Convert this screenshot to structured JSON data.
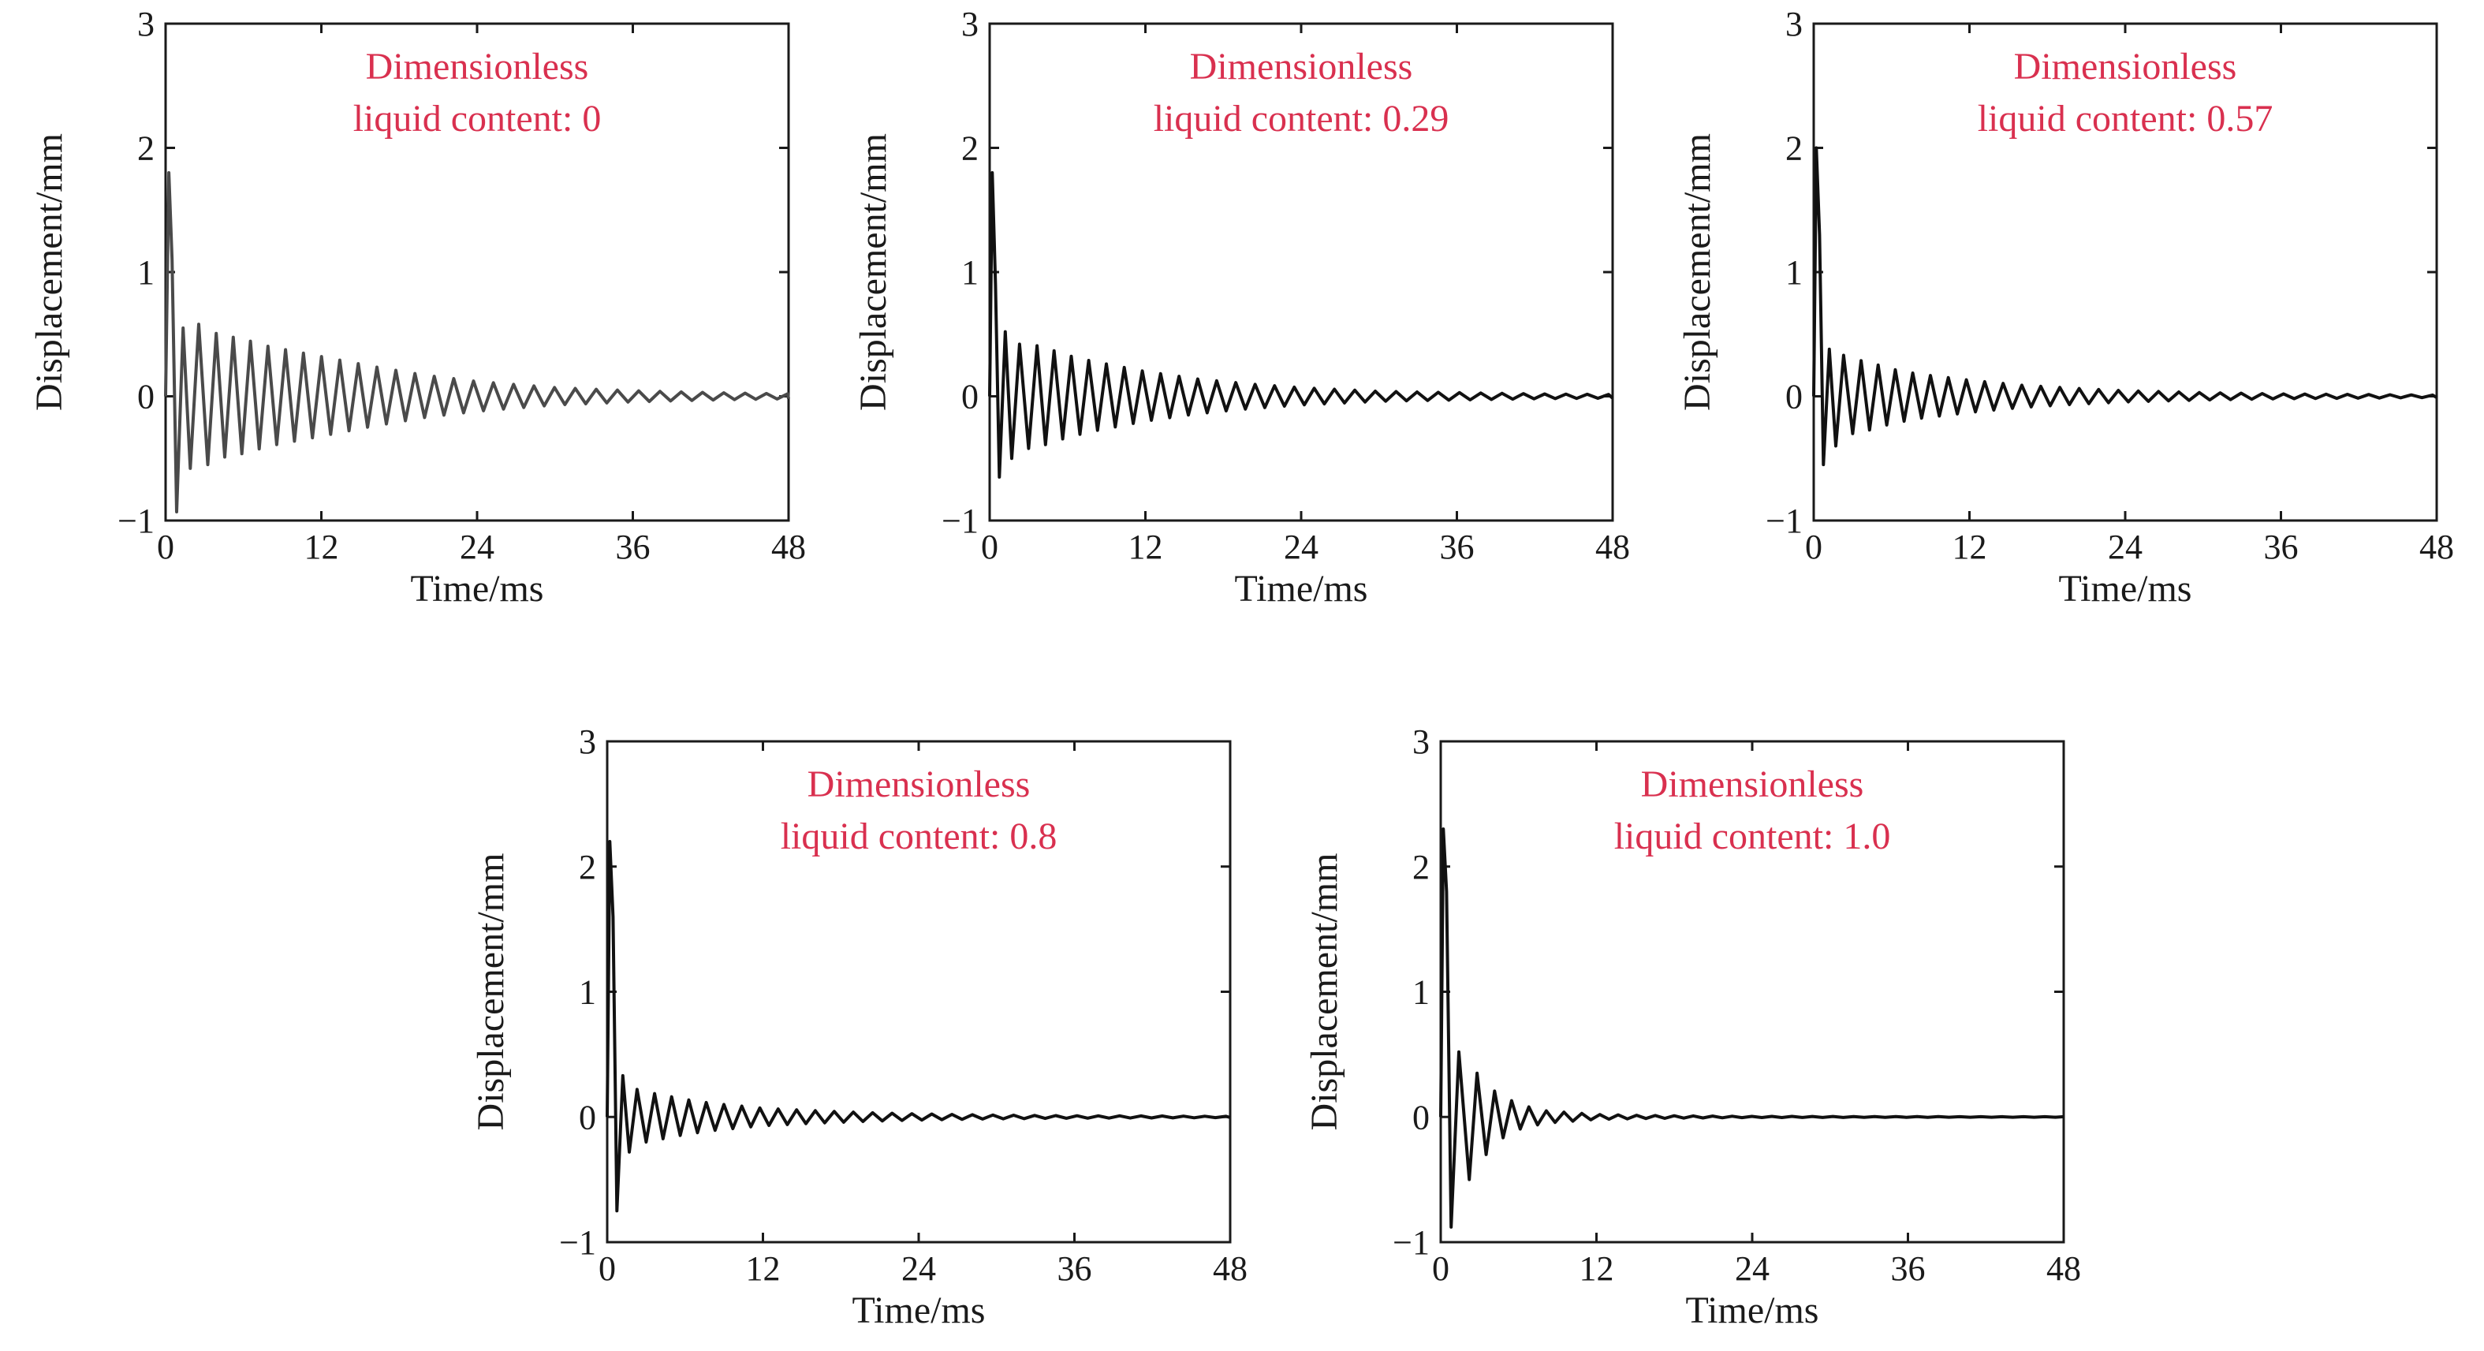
{
  "chart_data": [
    {
      "type": "line",
      "xlabel": "Time/ms",
      "ylabel": "Displacement/mm",
      "xlim": [
        0,
        48
      ],
      "ylim": [
        -1,
        3
      ],
      "xticks": [
        "0",
        "12",
        "24",
        "36",
        "48"
      ],
      "yticks": [
        "−1",
        "0",
        "1",
        "2",
        "3"
      ],
      "annotation": [
        "Dimensionless",
        "liquid content: 0"
      ],
      "color": "#4a4a4a",
      "series": [
        {
          "x": [
            0,
            0.25,
            0.5,
            0.85,
            1.35,
            1.9,
            2.55,
            3.25,
            4.0,
            6.0,
            8.0,
            12.0,
            16.0,
            20.0,
            24.0,
            30.0,
            36.0,
            42.0,
            48.0
          ],
          "y": [
            0,
            1.8,
            1.1,
            -0.93,
            0.55,
            -0.58,
            0.58,
            -0.55,
            0.5,
            0.46,
            0.4,
            0.32,
            0.24,
            0.17,
            0.12,
            0.07,
            0.045,
            0.03,
            0.02
          ]
        }
      ]
    },
    {
      "type": "line",
      "xlabel": "Time/ms",
      "ylabel": "Displacement/mm",
      "xlim": [
        0,
        48
      ],
      "ylim": [
        -1,
        3
      ],
      "xticks": [
        "0",
        "12",
        "24",
        "36",
        "48"
      ],
      "yticks": [
        "−1",
        "0",
        "1",
        "2",
        "3"
      ],
      "annotation": [
        "Dimensionless",
        "liquid content: 0.29"
      ],
      "color": "#111111",
      "series": [
        {
          "x": [
            0,
            0.2,
            0.45,
            0.75,
            1.2,
            1.7,
            2.3,
            3.0,
            4.0,
            6.0,
            8.0,
            12.0,
            16.0,
            20.0,
            24.0,
            30.0,
            36.0,
            42.0,
            48.0
          ],
          "y": [
            0,
            1.8,
            0.9,
            -0.65,
            0.52,
            -0.5,
            0.42,
            -0.42,
            0.4,
            0.33,
            0.28,
            0.2,
            0.14,
            0.1,
            0.07,
            0.04,
            0.03,
            0.02,
            0.015
          ]
        }
      ]
    },
    {
      "type": "line",
      "xlabel": "Time/ms",
      "ylabel": "Displacement/mm",
      "xlim": [
        0,
        48
      ],
      "ylim": [
        -1,
        3
      ],
      "xticks": [
        "0",
        "12",
        "24",
        "36",
        "48"
      ],
      "yticks": [
        "−1",
        "0",
        "1",
        "2",
        "3"
      ],
      "annotation": [
        "Dimensionless",
        "liquid content: 0.57"
      ],
      "color": "#111111",
      "series": [
        {
          "x": [
            0,
            0.2,
            0.45,
            0.75,
            1.2,
            1.7,
            2.3,
            3.0,
            4.0,
            6.0,
            8.0,
            12.0,
            16.0,
            20.0,
            24.0,
            30.0,
            36.0,
            42.0,
            48.0
          ],
          "y": [
            0,
            2.0,
            1.3,
            -0.55,
            0.38,
            -0.4,
            0.33,
            -0.3,
            0.28,
            0.22,
            0.18,
            0.13,
            0.09,
            0.065,
            0.045,
            0.03,
            0.02,
            0.015,
            0.01
          ]
        }
      ]
    },
    {
      "type": "line",
      "xlabel": "Time/ms",
      "ylabel": "Displacement/mm",
      "xlim": [
        0,
        48
      ],
      "ylim": [
        -1,
        3
      ],
      "xticks": [
        "0",
        "12",
        "24",
        "36",
        "48"
      ],
      "yticks": [
        "−1",
        "0",
        "1",
        "2",
        "3"
      ],
      "annotation": [
        "Dimensionless",
        "liquid content: 0.8"
      ],
      "color": "#111111",
      "series": [
        {
          "x": [
            0,
            0.2,
            0.45,
            0.75,
            1.2,
            1.7,
            2.3,
            3.0,
            4.0,
            6.0,
            8.0,
            12.0,
            16.0,
            20.0,
            24.0,
            30.0,
            36.0,
            42.0,
            48.0
          ],
          "y": [
            0,
            2.2,
            1.6,
            -0.75,
            0.33,
            -0.28,
            0.22,
            -0.2,
            0.18,
            0.14,
            0.11,
            0.07,
            0.05,
            0.035,
            0.025,
            0.015,
            0.01,
            0.008,
            0.005
          ]
        }
      ]
    },
    {
      "type": "line",
      "xlabel": "Time/ms",
      "ylabel": "Displacement/mm",
      "xlim": [
        0,
        48
      ],
      "ylim": [
        -1,
        3
      ],
      "xticks": [
        "0",
        "12",
        "24",
        "36",
        "48"
      ],
      "yticks": [
        "−1",
        "0",
        "1",
        "2",
        "3"
      ],
      "annotation": [
        "Dimensionless",
        "liquid content: 1.0"
      ],
      "color": "#111111",
      "series": [
        {
          "x": [
            0,
            0.2,
            0.45,
            0.8,
            1.4,
            2.2,
            2.8,
            3.5,
            4.2,
            6.0,
            8.0,
            12.0,
            16.0,
            20.0,
            24.0,
            30.0,
            36.0,
            42.0,
            48.0
          ],
          "y": [
            0,
            2.3,
            1.8,
            -0.88,
            0.52,
            -0.5,
            0.35,
            -0.3,
            0.2,
            0.1,
            0.05,
            0.02,
            0.012,
            0.008,
            0.005,
            0.004,
            0.003,
            0.002,
            0.002
          ]
        }
      ]
    }
  ]
}
